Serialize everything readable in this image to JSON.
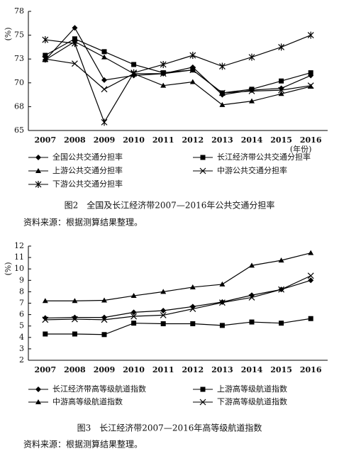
{
  "chart_data": [
    {
      "type": "line",
      "ylabel": "(%)",
      "xlabel": "(年份)",
      "caption": "图2　全国及长江经济带2007—2016年公共交通分担率",
      "source": "资料来源：根据测算结果整理。",
      "categories": [
        "2007",
        "2008",
        "2009",
        "2010",
        "2011",
        "2012",
        "2013",
        "2014",
        "2015",
        "2016"
      ],
      "ylim": [
        65,
        78
      ],
      "yticks": [
        65,
        {
          "value": 67.6,
          "label": "68"
        },
        {
          "value": 70.2,
          "label": "70"
        },
        {
          "value": 72.8,
          "label": "73"
        },
        {
          "value": 75.4,
          "label": "75"
        },
        78
      ],
      "series": [
        {
          "name": "全国公共交通分担率",
          "color": "#000000",
          "marker": "diamond",
          "values": [
            72.7,
            76.2,
            70.5,
            71.0,
            71.2,
            71.9,
            68.9,
            69.4,
            69.6,
            71.0
          ]
        },
        {
          "name": "长江经济带公共交通分担率",
          "color": "#000000",
          "marker": "square",
          "values": [
            73.2,
            75.0,
            73.6,
            72.2,
            71.3,
            71.6,
            69.1,
            69.5,
            70.4,
            71.3
          ]
        },
        {
          "name": "上游公共交通分担率",
          "color": "#000000",
          "marker": "triangle",
          "values": [
            72.7,
            74.7,
            73.0,
            71.2,
            69.9,
            70.3,
            67.8,
            68.2,
            69.0,
            69.8
          ]
        },
        {
          "name": "中游公共交通分担率",
          "color": "#000000",
          "marker": "x",
          "values": [
            72.8,
            72.3,
            69.5,
            71.2,
            71.2,
            71.6,
            69.1,
            69.3,
            69.4,
            69.9
          ]
        },
        {
          "name": "下游公共交通分担率",
          "color": "#000000",
          "marker": "star",
          "values": [
            74.9,
            74.5,
            65.9,
            71.3,
            72.2,
            73.2,
            72.0,
            73.0,
            74.1,
            75.4
          ]
        }
      ]
    },
    {
      "type": "line",
      "ylabel": "(%)",
      "caption": "图3　长江经济带2007—2016年高等级航道指数",
      "source": "资料来源：根据测算结果整理。",
      "categories": [
        "2007",
        "2008",
        "2009",
        "2010",
        "2011",
        "2012",
        "2013",
        "2014",
        "2015",
        "2016"
      ],
      "ylim": [
        2,
        12
      ],
      "yticks": [
        2,
        3,
        4,
        5,
        6,
        7,
        8,
        9,
        10,
        11,
        12
      ],
      "series": [
        {
          "name": "长江经济带高等级航道指数",
          "color": "#000000",
          "marker": "diamond",
          "values": [
            5.7,
            5.75,
            5.75,
            6.2,
            6.35,
            6.7,
            7.1,
            7.7,
            8.2,
            9.0
          ]
        },
        {
          "name": "上游高等级航道指数",
          "color": "#000000",
          "marker": "square",
          "values": [
            4.3,
            4.3,
            4.25,
            5.25,
            5.2,
            5.2,
            5.05,
            5.35,
            5.25,
            5.65
          ]
        },
        {
          "name": "中游高等级航道指数",
          "color": "#000000",
          "marker": "triangle",
          "values": [
            7.2,
            7.2,
            7.25,
            7.65,
            8.0,
            8.4,
            8.65,
            10.3,
            10.75,
            11.4
          ]
        },
        {
          "name": "下游高等级航道指数",
          "color": "#000000",
          "marker": "x",
          "values": [
            5.55,
            5.6,
            5.55,
            5.85,
            5.95,
            6.5,
            7.05,
            7.5,
            8.2,
            9.4
          ]
        }
      ]
    }
  ]
}
